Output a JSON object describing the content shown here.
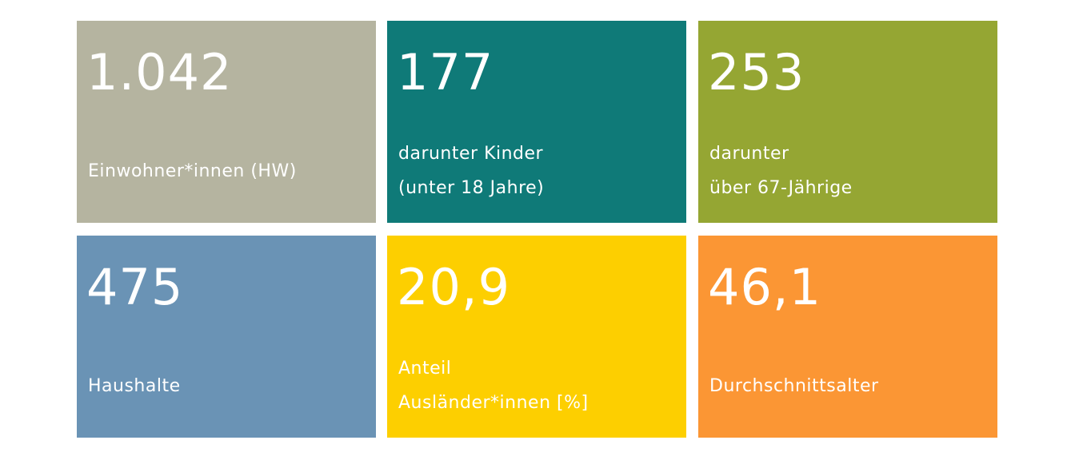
{
  "tiles": [
    {
      "value": "1.042",
      "label": [
        "Einwohner*innen (HW)"
      ]
    },
    {
      "value": "177",
      "label": [
        "darunter Kinder",
        "(unter 18 Jahre)"
      ]
    },
    {
      "value": "253",
      "label": [
        "darunter",
        "über 67-Jährige"
      ]
    },
    {
      "value": "475",
      "label": [
        "Haushalte"
      ]
    },
    {
      "value": "20,9",
      "label": [
        "Anteil",
        "Ausländer*innen [%]"
      ]
    },
    {
      "value": "46,1",
      "label": [
        "Durchschnittsalter"
      ]
    }
  ]
}
